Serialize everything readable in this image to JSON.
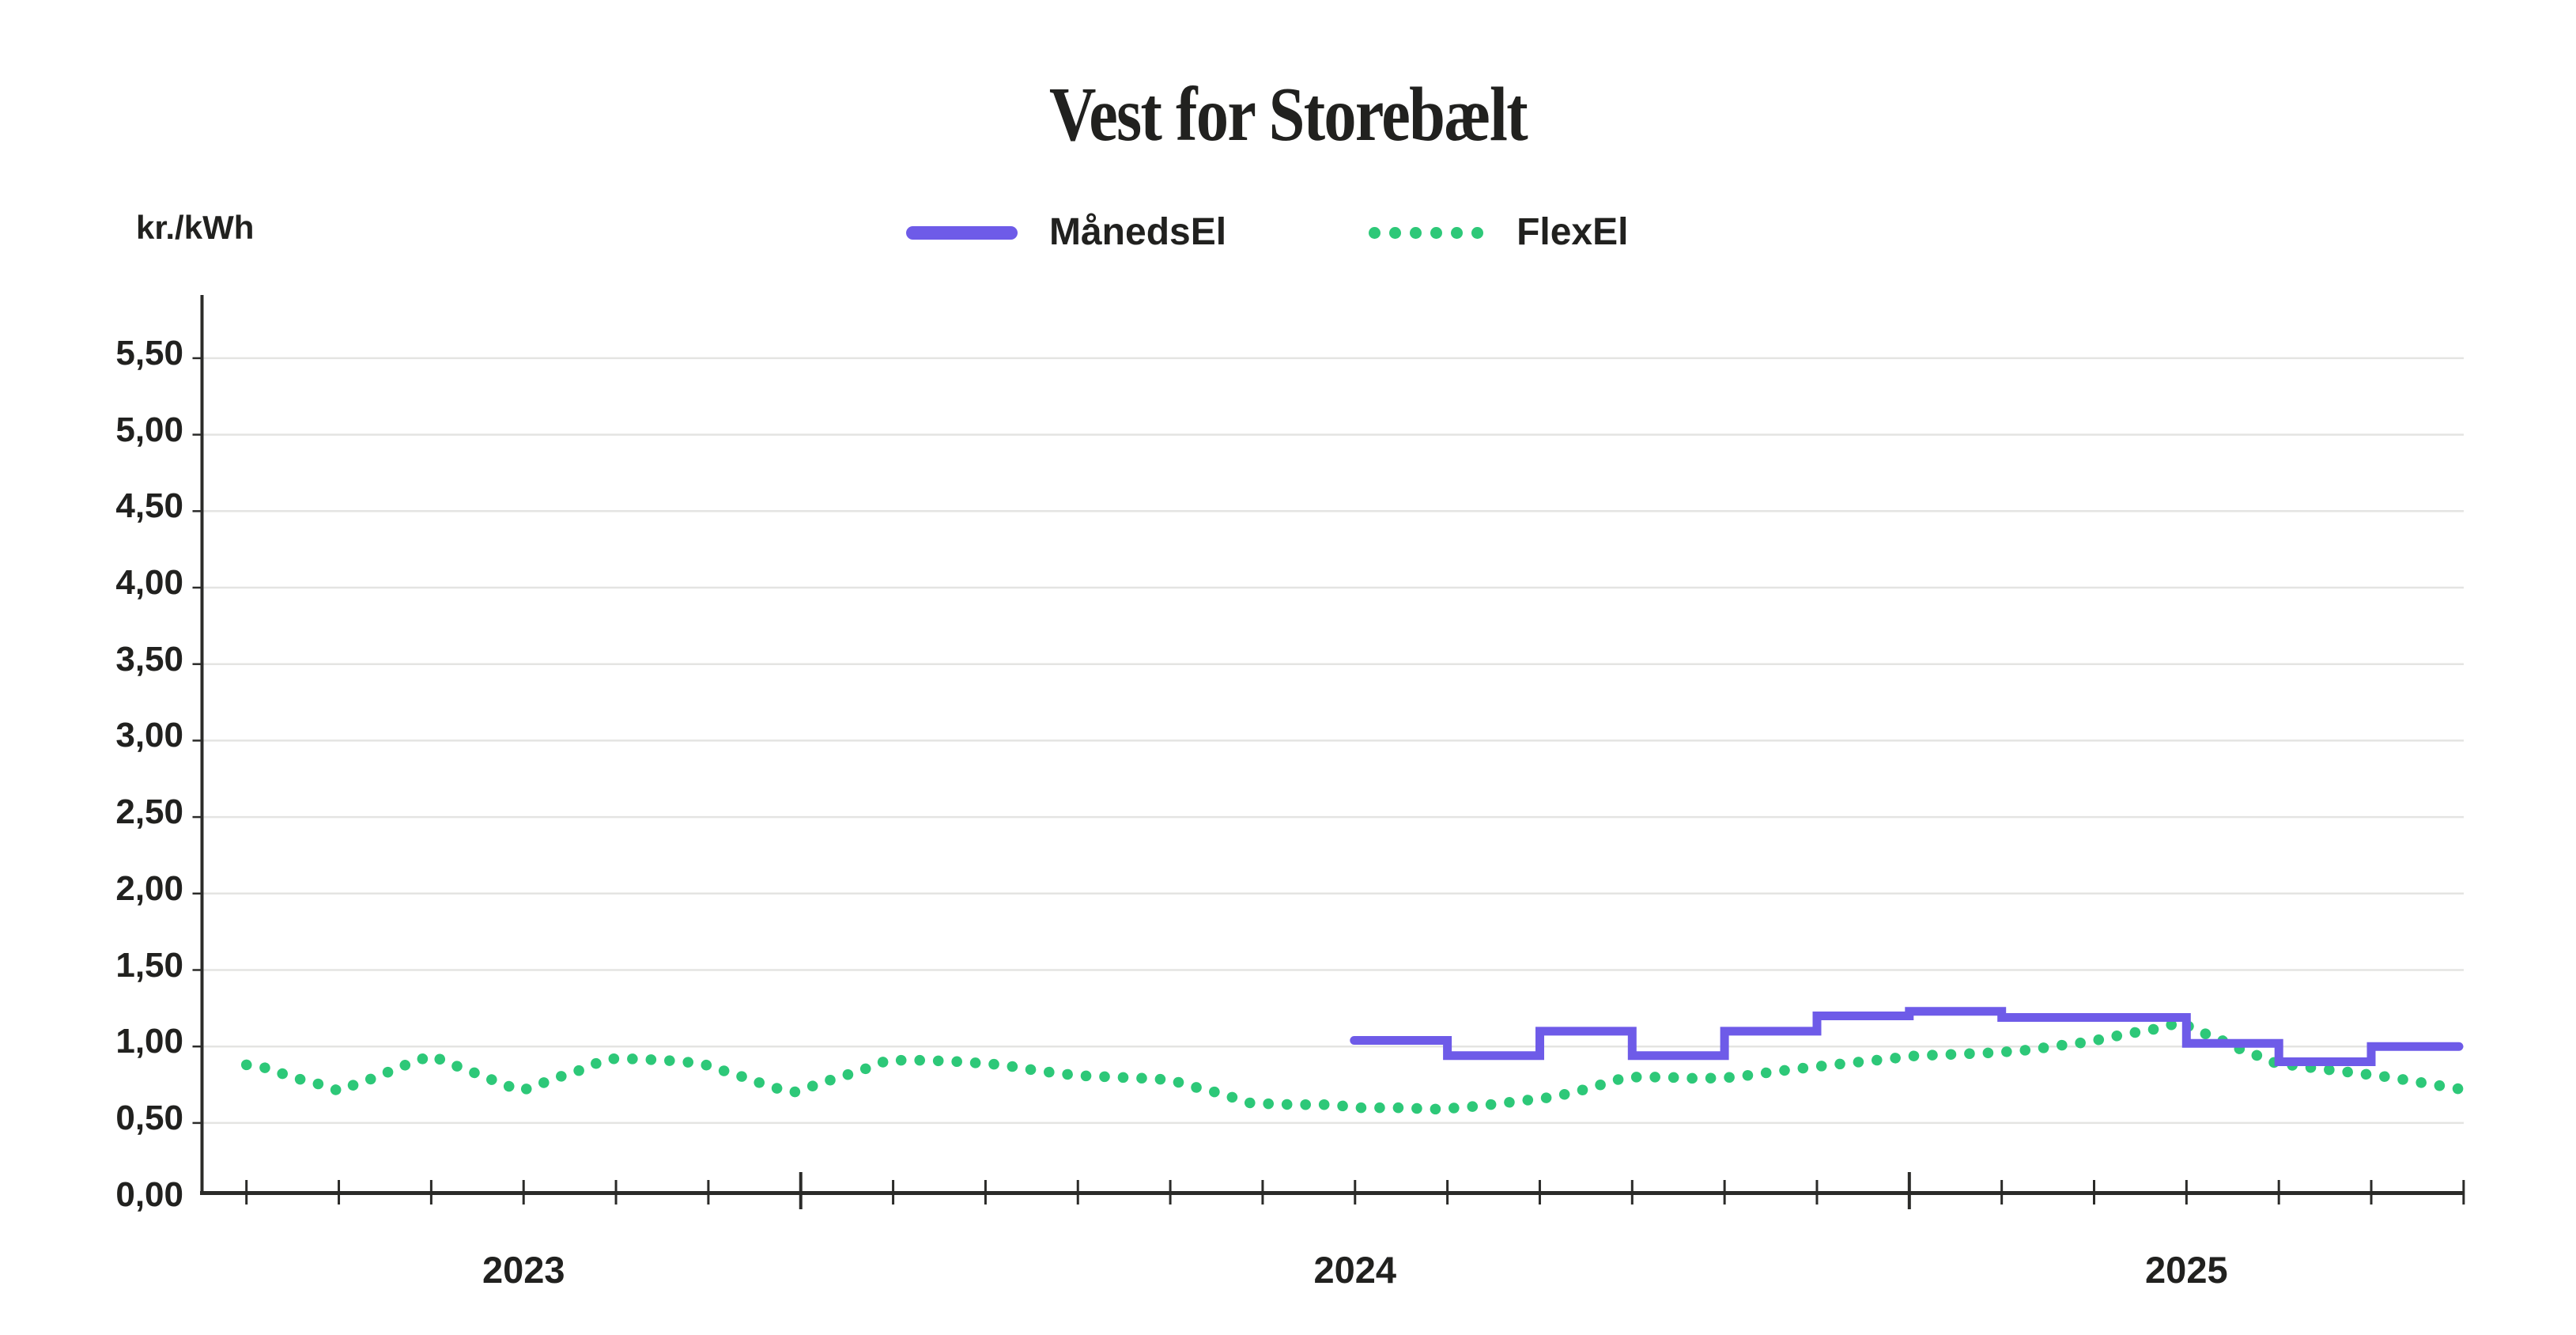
{
  "title": "Vest for Storebælt",
  "y_axis_unit": "kr./kWh",
  "legend": {
    "series1": "MånedsEl",
    "series2": "FlexEl"
  },
  "colors": {
    "manedsel": "#6e5be8",
    "flexel": "#2dc878",
    "text": "#21211f",
    "grid": "#e4e4e2",
    "axis": "#2b2b29",
    "background": "#ffffff"
  },
  "y_axis": {
    "labels": [
      "5,50",
      "5,00",
      "4,50",
      "4,00",
      "3,50",
      "3,00",
      "2,50",
      "2,00",
      "1,50",
      "1,00",
      "0,50",
      "0,00"
    ],
    "min": 0,
    "max": 5.5,
    "step": 0.5
  },
  "x_axis": {
    "year_labels": [
      {
        "text": "2023",
        "tick": 3
      },
      {
        "text": "2024",
        "tick": 12
      },
      {
        "text": "2025",
        "tick": 21
      }
    ],
    "tick_count": 25,
    "major_ticks": [
      6,
      18
    ]
  },
  "chart_data": {
    "type": "line",
    "title": "Vest for Storebælt",
    "xlabel": "",
    "ylabel": "kr./kWh",
    "ylim": [
      0,
      5.5
    ],
    "y_tick_step": 0.5,
    "grid": "horizontal gridlines on",
    "legend_position": "top-center",
    "x_unit": "axis tick index (25 evenly spaced ticks; year labels 2023/2024/2025 under ticks 3, 12 and 21; taller marker ticks at 6 and 18)",
    "series": [
      {
        "name": "MånedsEl",
        "style": "solid step line",
        "color": "#6e5be8",
        "start_tick": 12,
        "step_width_ticks": 1,
        "values": [
          1.04,
          0.94,
          1.1,
          0.94,
          1.1,
          1.2,
          1.23,
          1.19,
          1.19,
          1.02,
          0.9,
          1.0
        ]
      },
      {
        "name": "FlexEl",
        "style": "dotted line",
        "color": "#2dc878",
        "points": [
          [
            0.0,
            0.88
          ],
          [
            0.21,
            0.86
          ],
          [
            0.4,
            0.82
          ],
          [
            0.61,
            0.78
          ],
          [
            0.81,
            0.75
          ],
          [
            1.0,
            0.71
          ],
          [
            1.21,
            0.76
          ],
          [
            1.41,
            0.8
          ],
          [
            1.6,
            0.85
          ],
          [
            1.81,
            0.9
          ],
          [
            2.01,
            0.94
          ],
          [
            2.19,
            0.89
          ],
          [
            2.38,
            0.85
          ],
          [
            2.58,
            0.8
          ],
          [
            2.76,
            0.76
          ],
          [
            2.96,
            0.71
          ],
          [
            3.13,
            0.74
          ],
          [
            3.32,
            0.79
          ],
          [
            3.55,
            0.83
          ],
          [
            3.74,
            0.88
          ],
          [
            3.94,
            0.92
          ],
          [
            4.14,
            0.92
          ],
          [
            4.53,
            0.91
          ],
          [
            4.92,
            0.89
          ],
          [
            5.12,
            0.85
          ],
          [
            5.33,
            0.81
          ],
          [
            5.52,
            0.77
          ],
          [
            5.72,
            0.73
          ],
          [
            5.92,
            0.7
          ],
          [
            6.12,
            0.74
          ],
          [
            6.32,
            0.78
          ],
          [
            6.53,
            0.82
          ],
          [
            6.73,
            0.86
          ],
          [
            6.94,
            0.91
          ],
          [
            7.34,
            0.91
          ],
          [
            7.73,
            0.9
          ],
          [
            8.18,
            0.88
          ],
          [
            8.58,
            0.84
          ],
          [
            8.99,
            0.81
          ],
          [
            9.39,
            0.8
          ],
          [
            9.8,
            0.79
          ],
          [
            10.01,
            0.78
          ],
          [
            10.23,
            0.74
          ],
          [
            10.44,
            0.71
          ],
          [
            10.66,
            0.67
          ],
          [
            10.87,
            0.63
          ],
          [
            11.32,
            0.62
          ],
          [
            11.76,
            0.62
          ],
          [
            12.01,
            0.6
          ],
          [
            12.45,
            0.6
          ],
          [
            12.9,
            0.59
          ],
          [
            13.33,
            0.61
          ],
          [
            13.74,
            0.64
          ],
          [
            14.15,
            0.67
          ],
          [
            14.36,
            0.7
          ],
          [
            14.56,
            0.73
          ],
          [
            14.76,
            0.77
          ],
          [
            14.95,
            0.8
          ],
          [
            15.34,
            0.8
          ],
          [
            15.73,
            0.79
          ],
          [
            16.13,
            0.8
          ],
          [
            16.35,
            0.82
          ],
          [
            16.73,
            0.85
          ],
          [
            17.16,
            0.88
          ],
          [
            17.64,
            0.91
          ],
          [
            18.08,
            0.94
          ],
          [
            18.52,
            0.95
          ],
          [
            18.94,
            0.96
          ],
          [
            19.34,
            0.98
          ],
          [
            19.54,
            1.0
          ],
          [
            19.94,
            1.03
          ],
          [
            20.33,
            1.08
          ],
          [
            20.72,
            1.12
          ],
          [
            20.93,
            1.16
          ],
          [
            21.13,
            1.1
          ],
          [
            21.35,
            1.05
          ],
          [
            21.55,
            0.99
          ],
          [
            21.77,
            0.94
          ],
          [
            21.97,
            0.89
          ],
          [
            22.38,
            0.86
          ],
          [
            22.79,
            0.83
          ],
          [
            23.19,
            0.8
          ],
          [
            23.58,
            0.76
          ],
          [
            23.98,
            0.72
          ]
        ]
      }
    ]
  }
}
